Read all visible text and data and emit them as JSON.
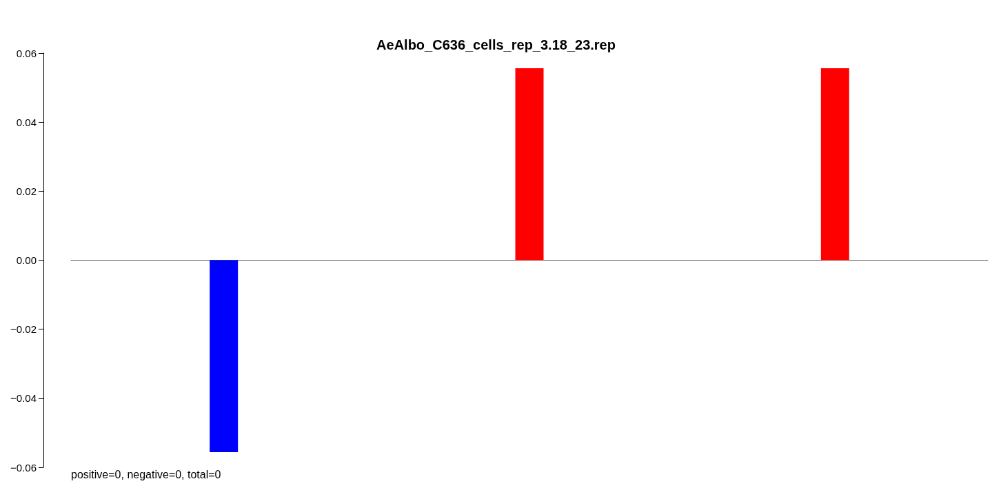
{
  "chart_data": {
    "type": "bar",
    "title": "AeAlbo_C636_cells_rep_3.18_23.rep",
    "categories": [
      null,
      null,
      null
    ],
    "values": [
      -0.0556,
      0.0556,
      0.0556
    ],
    "colors": [
      "#0000ff",
      "#ff0000",
      "#ff0000"
    ],
    "ylim": [
      -0.06,
      0.06
    ],
    "yticks": [
      {
        "value": -0.06,
        "label": "−0.06"
      },
      {
        "value": -0.04,
        "label": "−0.04"
      },
      {
        "value": -0.02,
        "label": "−0.02"
      },
      {
        "value": 0,
        "label": "0.00"
      },
      {
        "value": 0.02,
        "label": "0.02"
      },
      {
        "value": 0.04,
        "label": "0.04"
      },
      {
        "value": 0.06,
        "label": "0.06"
      }
    ],
    "tick_labels": "y",
    "annotations": [
      "positive=0, negative=0, total=0"
    ]
  }
}
